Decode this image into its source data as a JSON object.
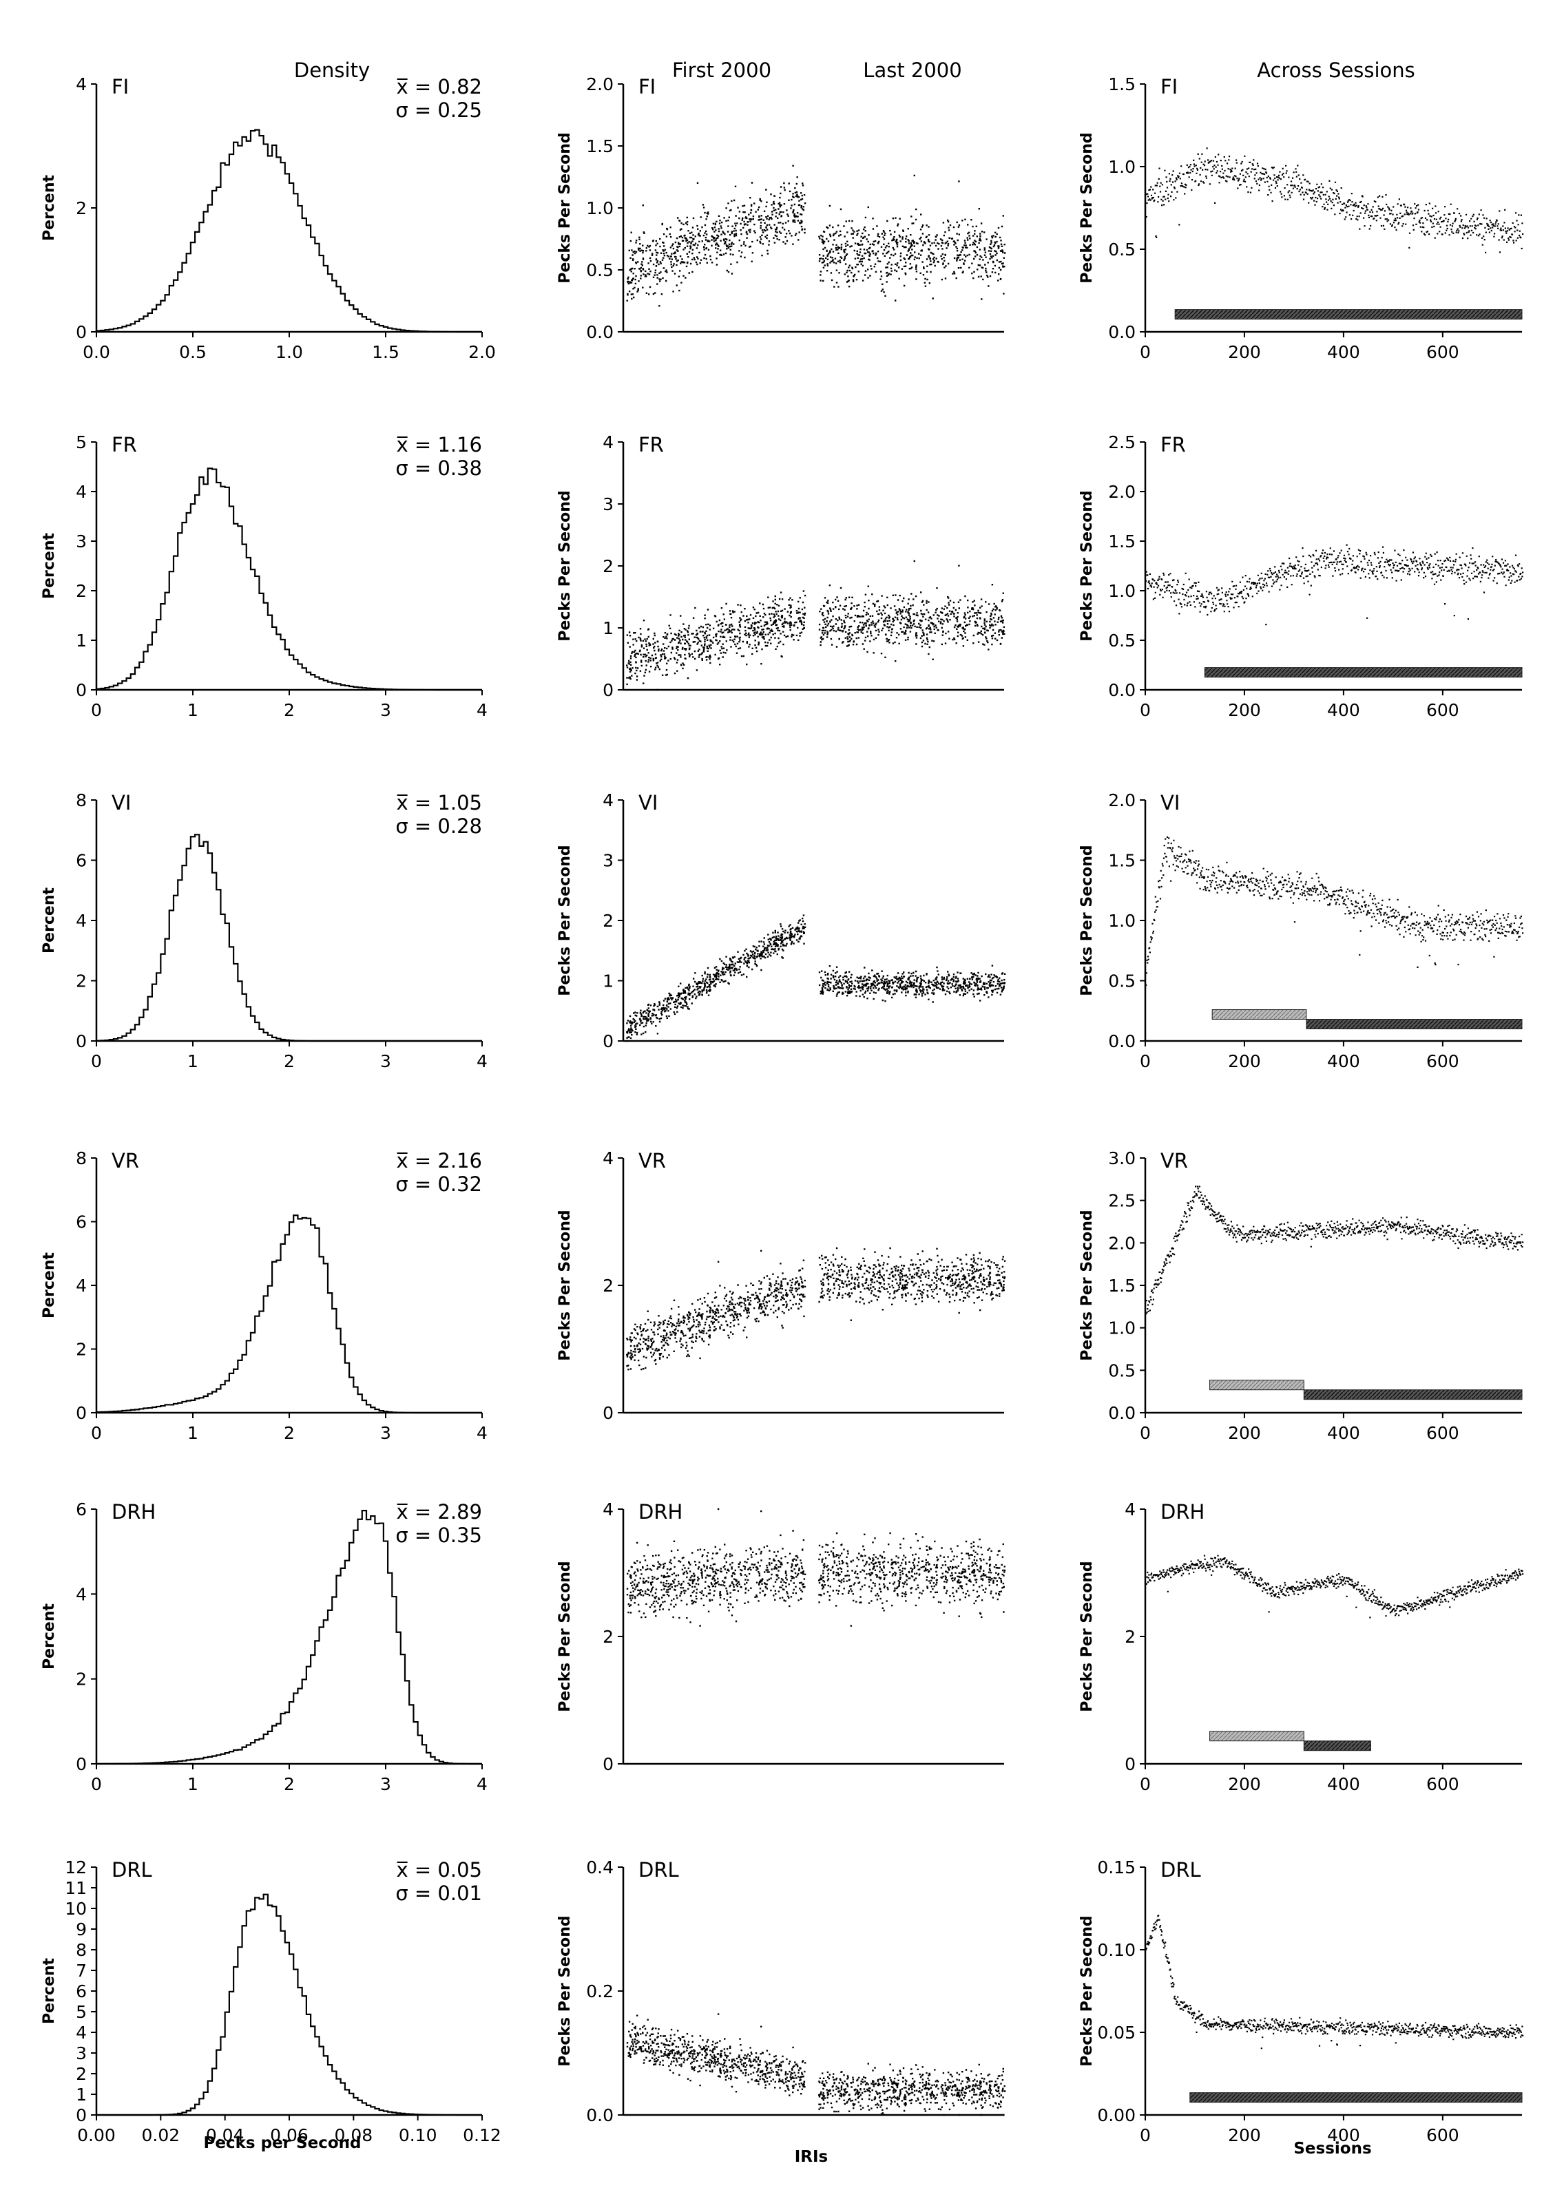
{
  "column_titles": [
    "Density",
    "First 2000",
    "Last 2000",
    "Across Sessions"
  ],
  "density_ylabel": "Percent",
  "rate_ylabel": "Pecks Per Second",
  "density_xlabel": "Pecks per Second",
  "iri_xlabel": "IRIs",
  "sessions_xlabel": "Sessions",
  "chart_data": [
    {
      "type": "line",
      "panel": "density",
      "schedule": "FI",
      "title": "FI",
      "xlim": [
        0,
        2
      ],
      "ylim": [
        0,
        4
      ],
      "xticks": [
        "0.0",
        "0.5",
        "1.0",
        "1.5",
        "2.0"
      ],
      "yticks": [
        "0",
        "2",
        "4"
      ],
      "ylabel": "Percent",
      "mean_label": "x̅ = 0.82",
      "sd_label": "σ = 0.25",
      "mean": 0.82,
      "sd": 0.25,
      "peak": 3.2,
      "skew": 0
    },
    {
      "type": "line",
      "panel": "density",
      "schedule": "FR",
      "title": "FR",
      "xlim": [
        0,
        4
      ],
      "ylim": [
        0,
        5
      ],
      "xticks": [
        "0",
        "1",
        "2",
        "3",
        "4"
      ],
      "yticks": [
        "0",
        "1",
        "2",
        "3",
        "4",
        "5"
      ],
      "ylabel": "Percent",
      "mean_label": "x̅ = 1.16",
      "sd_label": "σ = 0.38",
      "mean": 1.16,
      "sd": 0.38,
      "peak": 4.3,
      "skew": 0.15
    },
    {
      "type": "line",
      "panel": "density",
      "schedule": "VI",
      "title": "VI",
      "xlim": [
        0,
        4
      ],
      "ylim": [
        0,
        8
      ],
      "xticks": [
        "0",
        "1",
        "2",
        "3",
        "4"
      ],
      "yticks": [
        "0",
        "2",
        "4",
        "6",
        "8"
      ],
      "ylabel": "Percent",
      "mean_label": "x̅ = 1.05",
      "sd_label": "σ = 0.28",
      "mean": 1.05,
      "sd": 0.28,
      "peak": 6.8,
      "skew": 0
    },
    {
      "type": "line",
      "panel": "density",
      "schedule": "VR",
      "title": "VR",
      "xlim": [
        0,
        4
      ],
      "ylim": [
        0,
        8
      ],
      "xticks": [
        "0",
        "1",
        "2",
        "3",
        "4"
      ],
      "yticks": [
        "0",
        "2",
        "4",
        "6",
        "8"
      ],
      "ylabel": "Percent",
      "mean_label": "x̅ = 2.16",
      "sd_label": "σ = 0.32",
      "mean": 2.16,
      "sd": 0.32,
      "peak": 6.3,
      "skew": -0.3
    },
    {
      "type": "line",
      "panel": "density",
      "schedule": "DRH",
      "title": "DRH",
      "xlim": [
        0,
        4
      ],
      "ylim": [
        0,
        6
      ],
      "xticks": [
        "0",
        "1",
        "2",
        "3",
        "4"
      ],
      "yticks": [
        "0",
        "2",
        "4",
        "6"
      ],
      "ylabel": "Percent",
      "mean_label": "x̅ = 2.89",
      "sd_label": "σ = 0.35",
      "mean": 2.89,
      "sd": 0.35,
      "peak": 5.8,
      "skew": -0.6
    },
    {
      "type": "line",
      "panel": "density",
      "schedule": "DRL",
      "title": "DRL",
      "xlim": [
        0,
        0.12
      ],
      "ylim": [
        0,
        12
      ],
      "xticks": [
        "0.00",
        "0.02",
        "0.04",
        "0.06",
        "0.08",
        "0.10",
        "0.12"
      ],
      "yticks": [
        "0",
        "1",
        "2",
        "3",
        "4",
        "5",
        "6",
        "7",
        "8",
        "9",
        "10",
        "11",
        "12"
      ],
      "ylabel": "Percent",
      "xlabel": "Pecks per Second",
      "mean_label": "x̅ = 0.05",
      "sd_label": "σ = 0.01",
      "mean": 0.05,
      "sd": 0.01,
      "peak": 10.5,
      "skew": 0.4
    },
    {
      "type": "scatter",
      "panel": "iri",
      "schedule": "FI",
      "title": "FI",
      "ylim": [
        0,
        2
      ],
      "yticks": [
        "0.0",
        "0.5",
        "1.0",
        "1.5",
        "2.0"
      ],
      "ylabel": "Pecks Per Second",
      "first_start": 0.5,
      "first_end": 1.0,
      "last_level": 0.65,
      "spread": 0.25
    },
    {
      "type": "scatter",
      "panel": "iri",
      "schedule": "FR",
      "title": "FR",
      "ylim": [
        0,
        4
      ],
      "yticks": [
        "0",
        "1",
        "2",
        "3",
        "4"
      ],
      "ylabel": "Pecks Per Second",
      "first_start": 0.5,
      "first_end": 1.2,
      "last_level": 1.1,
      "spread": 0.4
    },
    {
      "type": "scatter",
      "panel": "iri",
      "schedule": "VI",
      "title": "VI",
      "ylim": [
        0,
        4
      ],
      "yticks": [
        "0",
        "1",
        "2",
        "3",
        "4"
      ],
      "ylabel": "Pecks Per Second",
      "first_start": 0.2,
      "first_end": 1.9,
      "last_level": 0.95,
      "spread": 0.2
    },
    {
      "type": "scatter",
      "panel": "iri",
      "schedule": "VR",
      "title": "VR",
      "ylim": [
        0,
        4
      ],
      "yticks": [
        "0",
        "2",
        "4"
      ],
      "ylabel": "Pecks Per Second",
      "first_start": 1.0,
      "first_end": 2.0,
      "last_level": 2.1,
      "spread": 0.35
    },
    {
      "type": "scatter",
      "panel": "iri",
      "schedule": "DRH",
      "title": "DRH",
      "ylim": [
        0,
        4
      ],
      "yticks": [
        "0",
        "2",
        "4"
      ],
      "ylabel": "Pecks Per Second",
      "first_start": 2.8,
      "first_end": 3.0,
      "last_level": 3.0,
      "spread": 0.45
    },
    {
      "type": "scatter",
      "panel": "iri",
      "schedule": "DRL",
      "title": "DRL",
      "ylim": [
        0,
        0.4
      ],
      "yticks": [
        "0.0",
        "0.2",
        "0.4"
      ],
      "ylabel": "Pecks Per Second",
      "xlabel": "IRIs",
      "first_start": 0.12,
      "first_end": 0.06,
      "last_level": 0.04,
      "spread": 0.03
    },
    {
      "type": "scatter",
      "panel": "sessions",
      "schedule": "FI",
      "title": "FI",
      "xlim": [
        0,
        760
      ],
      "ylim": [
        0,
        1.5
      ],
      "xticks": [
        "0",
        "200",
        "400",
        "600"
      ],
      "yticks": [
        "0.0",
        "0.5",
        "1.0",
        "1.5"
      ],
      "ylabel": "Pecks Per Second",
      "trend": [
        [
          0,
          0.8
        ],
        [
          120,
          1.0
        ],
        [
          300,
          0.9
        ],
        [
          420,
          0.75
        ],
        [
          760,
          0.6
        ]
      ],
      "spread": 0.1,
      "bars": [
        {
          "start": 60,
          "end": 760,
          "shade": "dark"
        }
      ]
    },
    {
      "type": "scatter",
      "panel": "sessions",
      "schedule": "FR",
      "title": "FR",
      "xlim": [
        0,
        760
      ],
      "ylim": [
        0,
        2.5
      ],
      "xticks": [
        "0",
        "200",
        "400",
        "600"
      ],
      "yticks": [
        "0.0",
        "0.5",
        "1.0",
        "1.5",
        "2.0",
        "2.5"
      ],
      "ylabel": "Pecks Per Second",
      "trend": [
        [
          0,
          1.1
        ],
        [
          150,
          0.9
        ],
        [
          350,
          1.3
        ],
        [
          550,
          1.25
        ],
        [
          760,
          1.2
        ]
      ],
      "spread": 0.15,
      "bars": [
        {
          "start": 120,
          "end": 760,
          "shade": "dark"
        }
      ]
    },
    {
      "type": "scatter",
      "panel": "sessions",
      "schedule": "VI",
      "title": "VI",
      "xlim": [
        0,
        760
      ],
      "ylim": [
        0,
        2
      ],
      "xticks": [
        "0",
        "200",
        "400",
        "600"
      ],
      "yticks": [
        "0.0",
        "0.5",
        "1.0",
        "1.5",
        "2.0"
      ],
      "ylabel": "Pecks Per Second",
      "trend": [
        [
          0,
          0.6
        ],
        [
          40,
          1.6
        ],
        [
          120,
          1.35
        ],
        [
          350,
          1.25
        ],
        [
          550,
          0.95
        ],
        [
          760,
          0.95
        ]
      ],
      "spread": 0.12,
      "bars": [
        {
          "start": 135,
          "end": 325,
          "shade": "light"
        },
        {
          "start": 325,
          "end": 760,
          "shade": "dark"
        }
      ]
    },
    {
      "type": "scatter",
      "panel": "sessions",
      "schedule": "VR",
      "title": "VR",
      "xlim": [
        0,
        760
      ],
      "ylim": [
        0,
        3
      ],
      "xticks": [
        "0",
        "200",
        "400",
        "600"
      ],
      "yticks": [
        "0.0",
        "0.5",
        "1.0",
        "1.5",
        "2.0",
        "2.5",
        "3.0"
      ],
      "ylabel": "Pecks Per Second",
      "trend": [
        [
          0,
          1.2
        ],
        [
          100,
          2.6
        ],
        [
          180,
          2.1
        ],
        [
          500,
          2.2
        ],
        [
          760,
          2.0
        ]
      ],
      "spread": 0.1,
      "bars": [
        {
          "start": 130,
          "end": 320,
          "shade": "light"
        },
        {
          "start": 320,
          "end": 760,
          "shade": "dark"
        }
      ]
    },
    {
      "type": "scatter",
      "panel": "sessions",
      "schedule": "DRH",
      "title": "DRH",
      "xlim": [
        0,
        760
      ],
      "ylim": [
        0,
        4
      ],
      "xticks": [
        "0",
        "200",
        "400",
        "600"
      ],
      "yticks": [
        "0",
        "2",
        "4"
      ],
      "ylabel": "Pecks Per Second",
      "trend": [
        [
          0,
          2.9
        ],
        [
          150,
          3.2
        ],
        [
          260,
          2.7
        ],
        [
          400,
          2.9
        ],
        [
          500,
          2.4
        ],
        [
          760,
          3.0
        ]
      ],
      "spread": 0.1,
      "bars": [
        {
          "start": 130,
          "end": 320,
          "shade": "light"
        },
        {
          "start": 320,
          "end": 455,
          "shade": "dark"
        }
      ]
    },
    {
      "type": "scatter",
      "panel": "sessions",
      "schedule": "DRL",
      "title": "DRL",
      "xlim": [
        0,
        760
      ],
      "ylim": [
        0,
        0.15
      ],
      "xticks": [
        "0",
        "200",
        "400",
        "600"
      ],
      "yticks": [
        "0.00",
        "0.05",
        "0.10",
        "0.15"
      ],
      "ylabel": "Pecks Per Second",
      "xlabel": "Sessions",
      "trend": [
        [
          0,
          0.1
        ],
        [
          25,
          0.12
        ],
        [
          60,
          0.07
        ],
        [
          120,
          0.055
        ],
        [
          760,
          0.05
        ]
      ],
      "spread": 0.004,
      "bars": [
        {
          "start": 90,
          "end": 760,
          "shade": "dark"
        }
      ]
    }
  ]
}
